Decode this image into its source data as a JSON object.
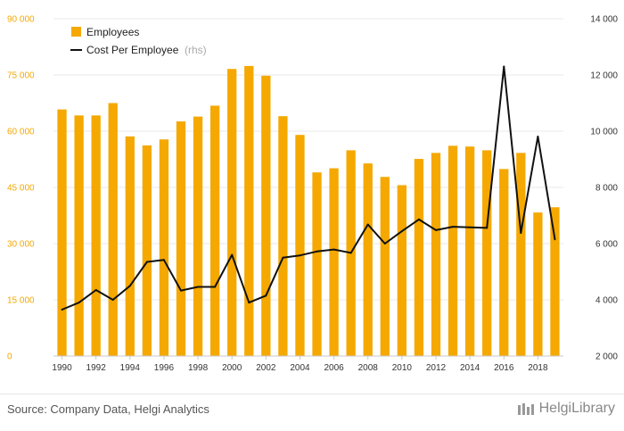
{
  "chart_data": {
    "type": "bar+line",
    "categories": [
      "1990",
      "1991",
      "1992",
      "1993",
      "1994",
      "1995",
      "1996",
      "1997",
      "1998",
      "1999",
      "2000",
      "2001",
      "2002",
      "2003",
      "2004",
      "2005",
      "2006",
      "2007",
      "2008",
      "2009",
      "2010",
      "2011",
      "2012",
      "2013",
      "2014",
      "2015",
      "2016",
      "2017",
      "2018",
      "2019"
    ],
    "x_tick_labels": [
      "1990",
      "1992",
      "1994",
      "1996",
      "1998",
      "2000",
      "2002",
      "2004",
      "2006",
      "2008",
      "2010",
      "2012",
      "2014",
      "2016",
      "2018"
    ],
    "series": [
      {
        "name": "Employees",
        "type": "bar",
        "axis": "left",
        "color": "#F5A800",
        "values": [
          65800,
          64200,
          64200,
          67500,
          58600,
          56200,
          57800,
          62600,
          63900,
          66800,
          76600,
          77400,
          74800,
          64000,
          59000,
          49000,
          50100,
          54900,
          51400,
          47800,
          45600,
          52600,
          54200,
          56100,
          55900,
          54900,
          49900,
          54200,
          38300,
          39700
        ]
      },
      {
        "name": "Cost Per Employee",
        "unit": "(rhs)",
        "type": "line",
        "axis": "right",
        "color": "#111111",
        "values": [
          3650,
          3900,
          4350,
          4000,
          4500,
          5350,
          5420,
          4330,
          4460,
          4460,
          5600,
          3900,
          4150,
          5500,
          5580,
          5720,
          5790,
          5670,
          6680,
          6000,
          6440,
          6860,
          6480,
          6600,
          6580,
          6560,
          12300,
          6380,
          9810,
          6150
        ]
      }
    ],
    "y_left": {
      "ticks": [
        "0",
        "15 000",
        "30 000",
        "45 000",
        "60 000",
        "75 000",
        "90 000"
      ],
      "ylim": [
        0,
        90000
      ],
      "color": "#F5A800"
    },
    "y_right": {
      "ticks": [
        "2 000",
        "4 000",
        "6 000",
        "8 000",
        "10 000",
        "12 000",
        "14 000"
      ],
      "ylim": [
        2000,
        14000
      ]
    },
    "grid": true,
    "legend": "top-left"
  },
  "footer": {
    "source": "Source: Company Data, Helgi Analytics",
    "brand": "HelgiLibrary"
  },
  "colors": {
    "grid": "#e8e8e8",
    "axis": "#c8c8c8"
  }
}
